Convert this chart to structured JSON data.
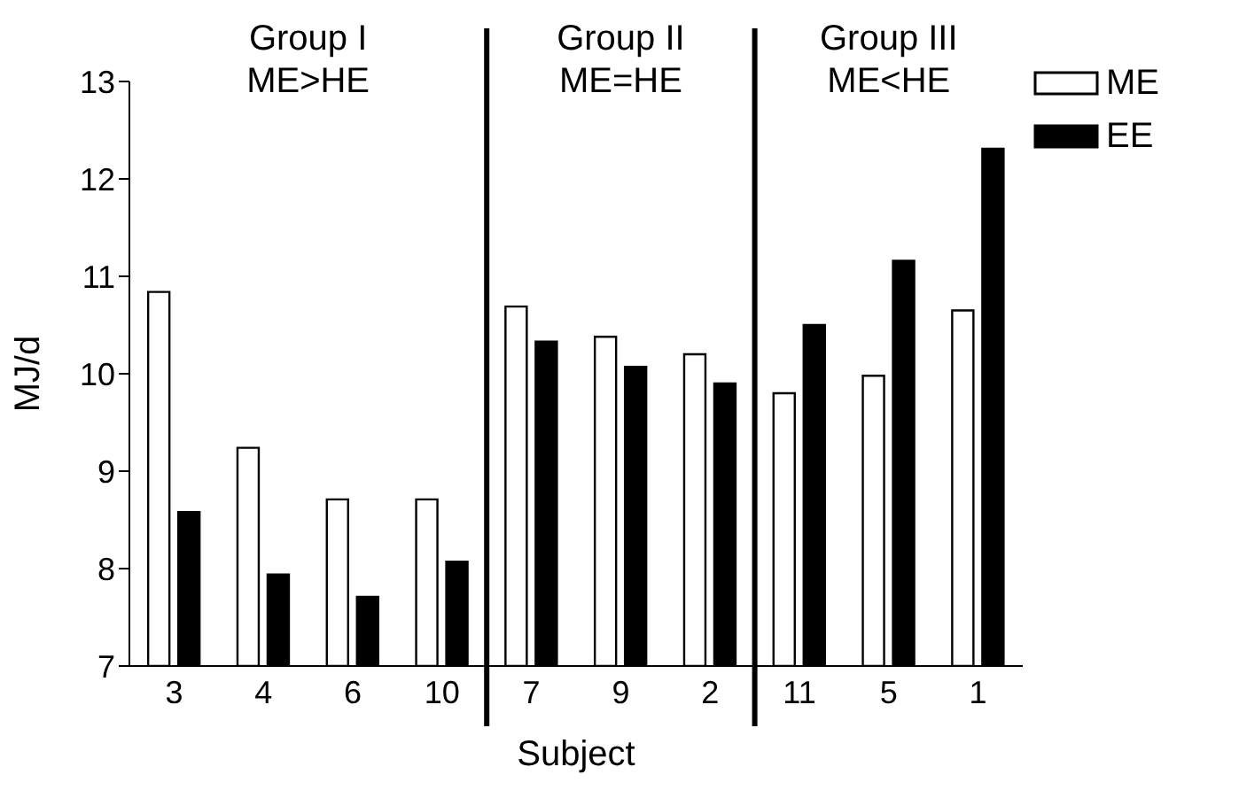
{
  "chart_data": {
    "type": "bar",
    "xlabel": "Subject",
    "ylabel": "MJ/d",
    "categories": [
      "3",
      "4",
      "6",
      "10",
      "7",
      "9",
      "2",
      "11",
      "5",
      "1"
    ],
    "series": [
      {
        "name": "ME",
        "color": "#ffffff",
        "values": [
          10.84,
          9.24,
          8.71,
          8.71,
          10.69,
          10.38,
          10.2,
          9.8,
          9.98,
          10.65
        ]
      },
      {
        "name": "EE",
        "color": "#000000",
        "values": [
          8.58,
          7.94,
          7.71,
          8.07,
          10.33,
          10.07,
          9.9,
          10.5,
          11.16,
          12.31
        ]
      }
    ],
    "ylim": [
      7,
      13
    ],
    "yticks": [
      7,
      8,
      9,
      10,
      11,
      12,
      13
    ],
    "grid": false,
    "legend": "top right",
    "annotations": [
      "Group I\nME>HE",
      "Group II\nME=HE",
      "Group III\nME<HE"
    ]
  }
}
